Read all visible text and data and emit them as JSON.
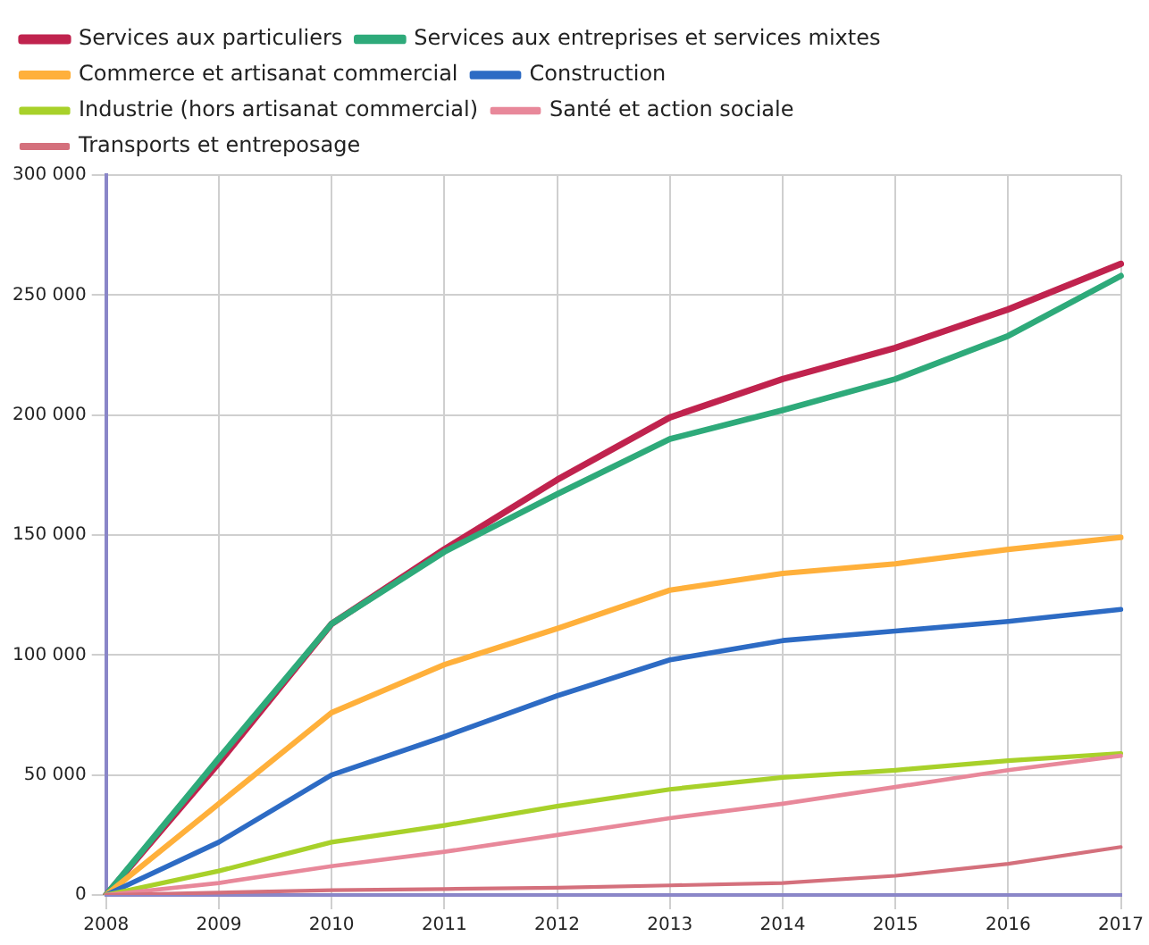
{
  "chart_data": {
    "type": "line",
    "categories": [
      "2008",
      "2009",
      "2010",
      "2011",
      "2012",
      "2013",
      "2014",
      "2015",
      "2016",
      "2017"
    ],
    "series": [
      {
        "name": "Services aux particuliers",
        "color": "#c0234e",
        "values": [
          0,
          55000,
          113000,
          144000,
          173000,
          199000,
          215000,
          228000,
          244000,
          263000
        ]
      },
      {
        "name": "Services aux entreprises et services mixtes",
        "color": "#2eaa7a",
        "values": [
          0,
          57000,
          113000,
          143000,
          167000,
          190000,
          202000,
          215000,
          233000,
          258000
        ]
      },
      {
        "name": "Commerce et artisanat commercial",
        "color": "#ffb03b",
        "values": [
          0,
          38000,
          76000,
          96000,
          111000,
          127000,
          134000,
          138000,
          144000,
          149000
        ]
      },
      {
        "name": "Construction",
        "color": "#2d6bc4",
        "values": [
          0,
          22000,
          50000,
          66000,
          83000,
          98000,
          106000,
          110000,
          114000,
          119000
        ]
      },
      {
        "name": "Industrie (hors artisanat commercial)",
        "color": "#a8d12a",
        "values": [
          0,
          10000,
          22000,
          29000,
          37000,
          44000,
          49000,
          52000,
          56000,
          59000
        ]
      },
      {
        "name": "Santé et action sociale",
        "color": "#e8889a",
        "values": [
          0,
          5000,
          12000,
          18000,
          25000,
          32000,
          38000,
          45000,
          52000,
          58000
        ]
      },
      {
        "name": "Transports et entreposage",
        "color": "#d4707c",
        "values": [
          0,
          1000,
          2000,
          2500,
          3000,
          4000,
          5000,
          8000,
          13000,
          20000
        ]
      }
    ],
    "ylim": [
      0,
      300000
    ],
    "yticks": [
      {
        "value": 0,
        "label": "0"
      },
      {
        "value": 50000,
        "label": "50 000"
      },
      {
        "value": 100000,
        "label": "100 000"
      },
      {
        "value": 150000,
        "label": "150 000"
      },
      {
        "value": 200000,
        "label": "200 000"
      },
      {
        "value": 250000,
        "label": "250 000"
      },
      {
        "value": 300000,
        "label": "300 000"
      }
    ],
    "grid": true,
    "legend": "top",
    "marker": "none",
    "line_style": "solid"
  }
}
